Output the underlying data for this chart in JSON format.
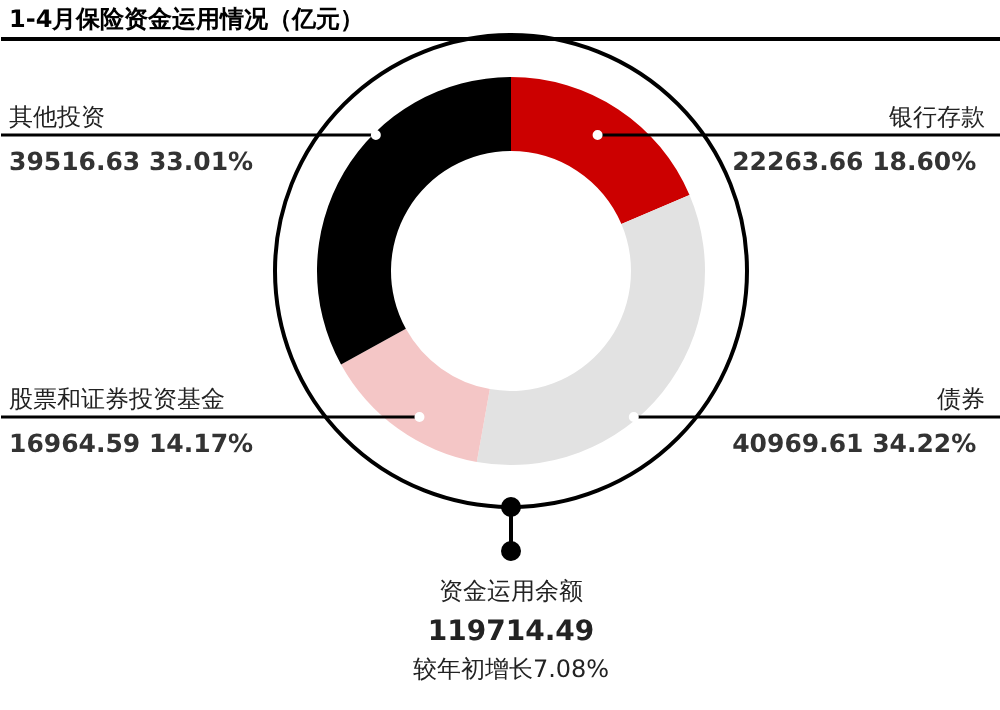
{
  "chart_data": {
    "type": "donut",
    "title": "1-4月保险资金运用情况（亿元）",
    "categories": [
      "银行存款",
      "债券",
      "股票和证券投资基金",
      "其他投资"
    ],
    "values": [
      22263.66,
      40969.61,
      16964.59,
      39516.63
    ],
    "colors": [
      "#cc0000",
      "#e2e2e2",
      "#f4c6c6",
      "#000000"
    ],
    "value_labels": [
      "22263.66  18.60%",
      "40969.61  34.22%",
      "16964.59  14.17%",
      "39516.63  33.01%"
    ],
    "annotations": [
      "资金运用余额",
      "119714.49",
      "较年初增长7.08%"
    ]
  }
}
